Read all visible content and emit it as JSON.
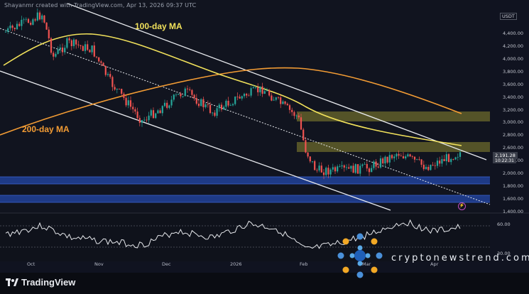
{
  "header": {
    "text": "Shayanmr created with TradingView.com, Apr 13, 2026 09:37 UTC"
  },
  "currency": "USDT",
  "price_ticks": [
    "4,400.00",
    "4,200.00",
    "4,000.00",
    "3,800.00",
    "3,600.00",
    "3,400.00",
    "3,200.00",
    "3,000.00",
    "2,800.00",
    "2,600.00",
    "2,400.00",
    "2,000.00",
    "1,800.00",
    "1,600.00",
    "1,400.00"
  ],
  "current_price": "2,191.28",
  "current_time": "10:22:31",
  "labels": {
    "ma100": "100-day MA",
    "ma200": "200-day MA"
  },
  "rsi_ticks": [
    "60.00",
    "30.00"
  ],
  "months": [
    "Oct",
    "Nov",
    "Dec",
    "2026",
    "Feb",
    "Mar",
    "Apr"
  ],
  "footer": {
    "brand": "TradingView"
  },
  "watermark": "cryptonewstrend.com",
  "colors": {
    "ma100": "#f1e15b",
    "ma200": "#f39c34",
    "up": "#26a69a",
    "down": "#ef5350",
    "zone_yellow": "#6b6a2e",
    "zone_blue": "#1f3c86"
  }
}
